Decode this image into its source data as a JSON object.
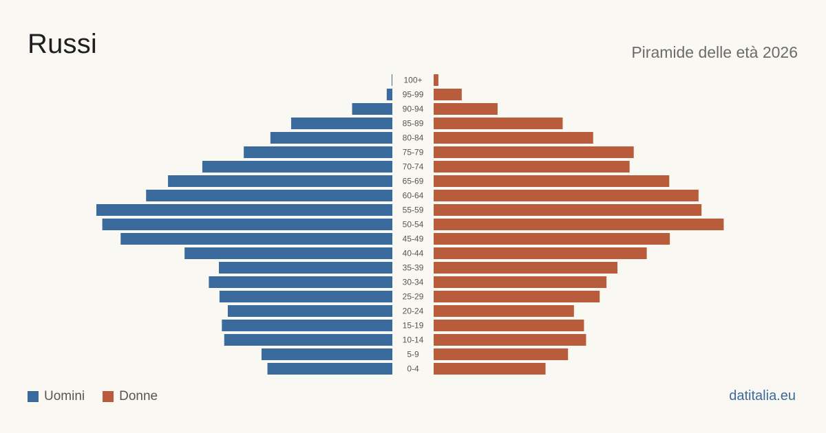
{
  "title": "Russi",
  "subtitle": "Piramide delle età 2026",
  "brand": "datitalia.eu",
  "legend": {
    "men_label": "Uomini",
    "women_label": "Donne"
  },
  "colors": {
    "men": "#3b6a9c",
    "women": "#b95c3b"
  },
  "chart_data": {
    "type": "bar",
    "orientation": "horizontal-pyramid",
    "title": "Russi",
    "subtitle": "Piramide delle età 2026",
    "categories": [
      "100+",
      "95-99",
      "90-94",
      "85-89",
      "80-84",
      "75-79",
      "70-74",
      "65-69",
      "60-64",
      "55-59",
      "50-54",
      "45-49",
      "40-44",
      "35-39",
      "30-34",
      "25-29",
      "20-24",
      "15-19",
      "10-14",
      "5-9",
      "0-4"
    ],
    "series": [
      {
        "name": "Uomini",
        "values": [
          0.2,
          1.9,
          13.6,
          34.2,
          41.2,
          50.2,
          64.2,
          75.8,
          83.2,
          100,
          98,
          91.8,
          70.2,
          58.6,
          62,
          58.4,
          55.6,
          57.6,
          56.8,
          44.2,
          42.2
        ]
      },
      {
        "name": "Donne",
        "values": [
          1.6,
          9.5,
          21.6,
          43.6,
          53.9,
          67.6,
          66.2,
          79.6,
          89.5,
          90.5,
          98,
          79.8,
          72,
          62.1,
          58.4,
          56.1,
          47.4,
          50.8,
          51.5,
          45.4,
          37.8
        ]
      }
    ]
  }
}
